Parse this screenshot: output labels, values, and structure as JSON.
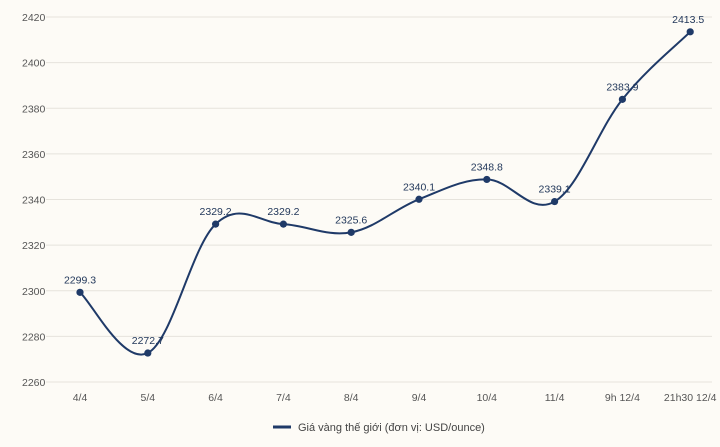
{
  "chart_data": {
    "type": "line",
    "categories": [
      "4/4",
      "5/4",
      "6/4",
      "7/4",
      "8/4",
      "9/4",
      "10/4",
      "11/4",
      "9h 12/4",
      "21h30 12/4"
    ],
    "series": [
      {
        "name": "Giá vàng thế giới (đơn vị: USD/ounce)",
        "values": [
          2299.3,
          2272.7,
          2329.2,
          2329.2,
          2325.6,
          2340.1,
          2348.8,
          2339.1,
          2383.9,
          2413.5
        ],
        "labels": [
          "2299.3",
          "2272.7",
          "2329.2",
          "2329.2",
          "2325.6",
          "2340.1",
          "2348.8",
          "2339.1",
          "2383.9",
          "2413.5"
        ]
      }
    ],
    "yticks": [
      2260,
      2280,
      2300,
      2320,
      2340,
      2360,
      2380,
      2400,
      2420
    ],
    "ylim": [
      2260,
      2420
    ],
    "title": "",
    "xlabel": "",
    "ylabel": "",
    "grid": true,
    "legend_position": "bottom-center",
    "colors": {
      "line": "#1f3a68",
      "grid": "#e6e3dc",
      "background": "#fdfbf6"
    }
  }
}
